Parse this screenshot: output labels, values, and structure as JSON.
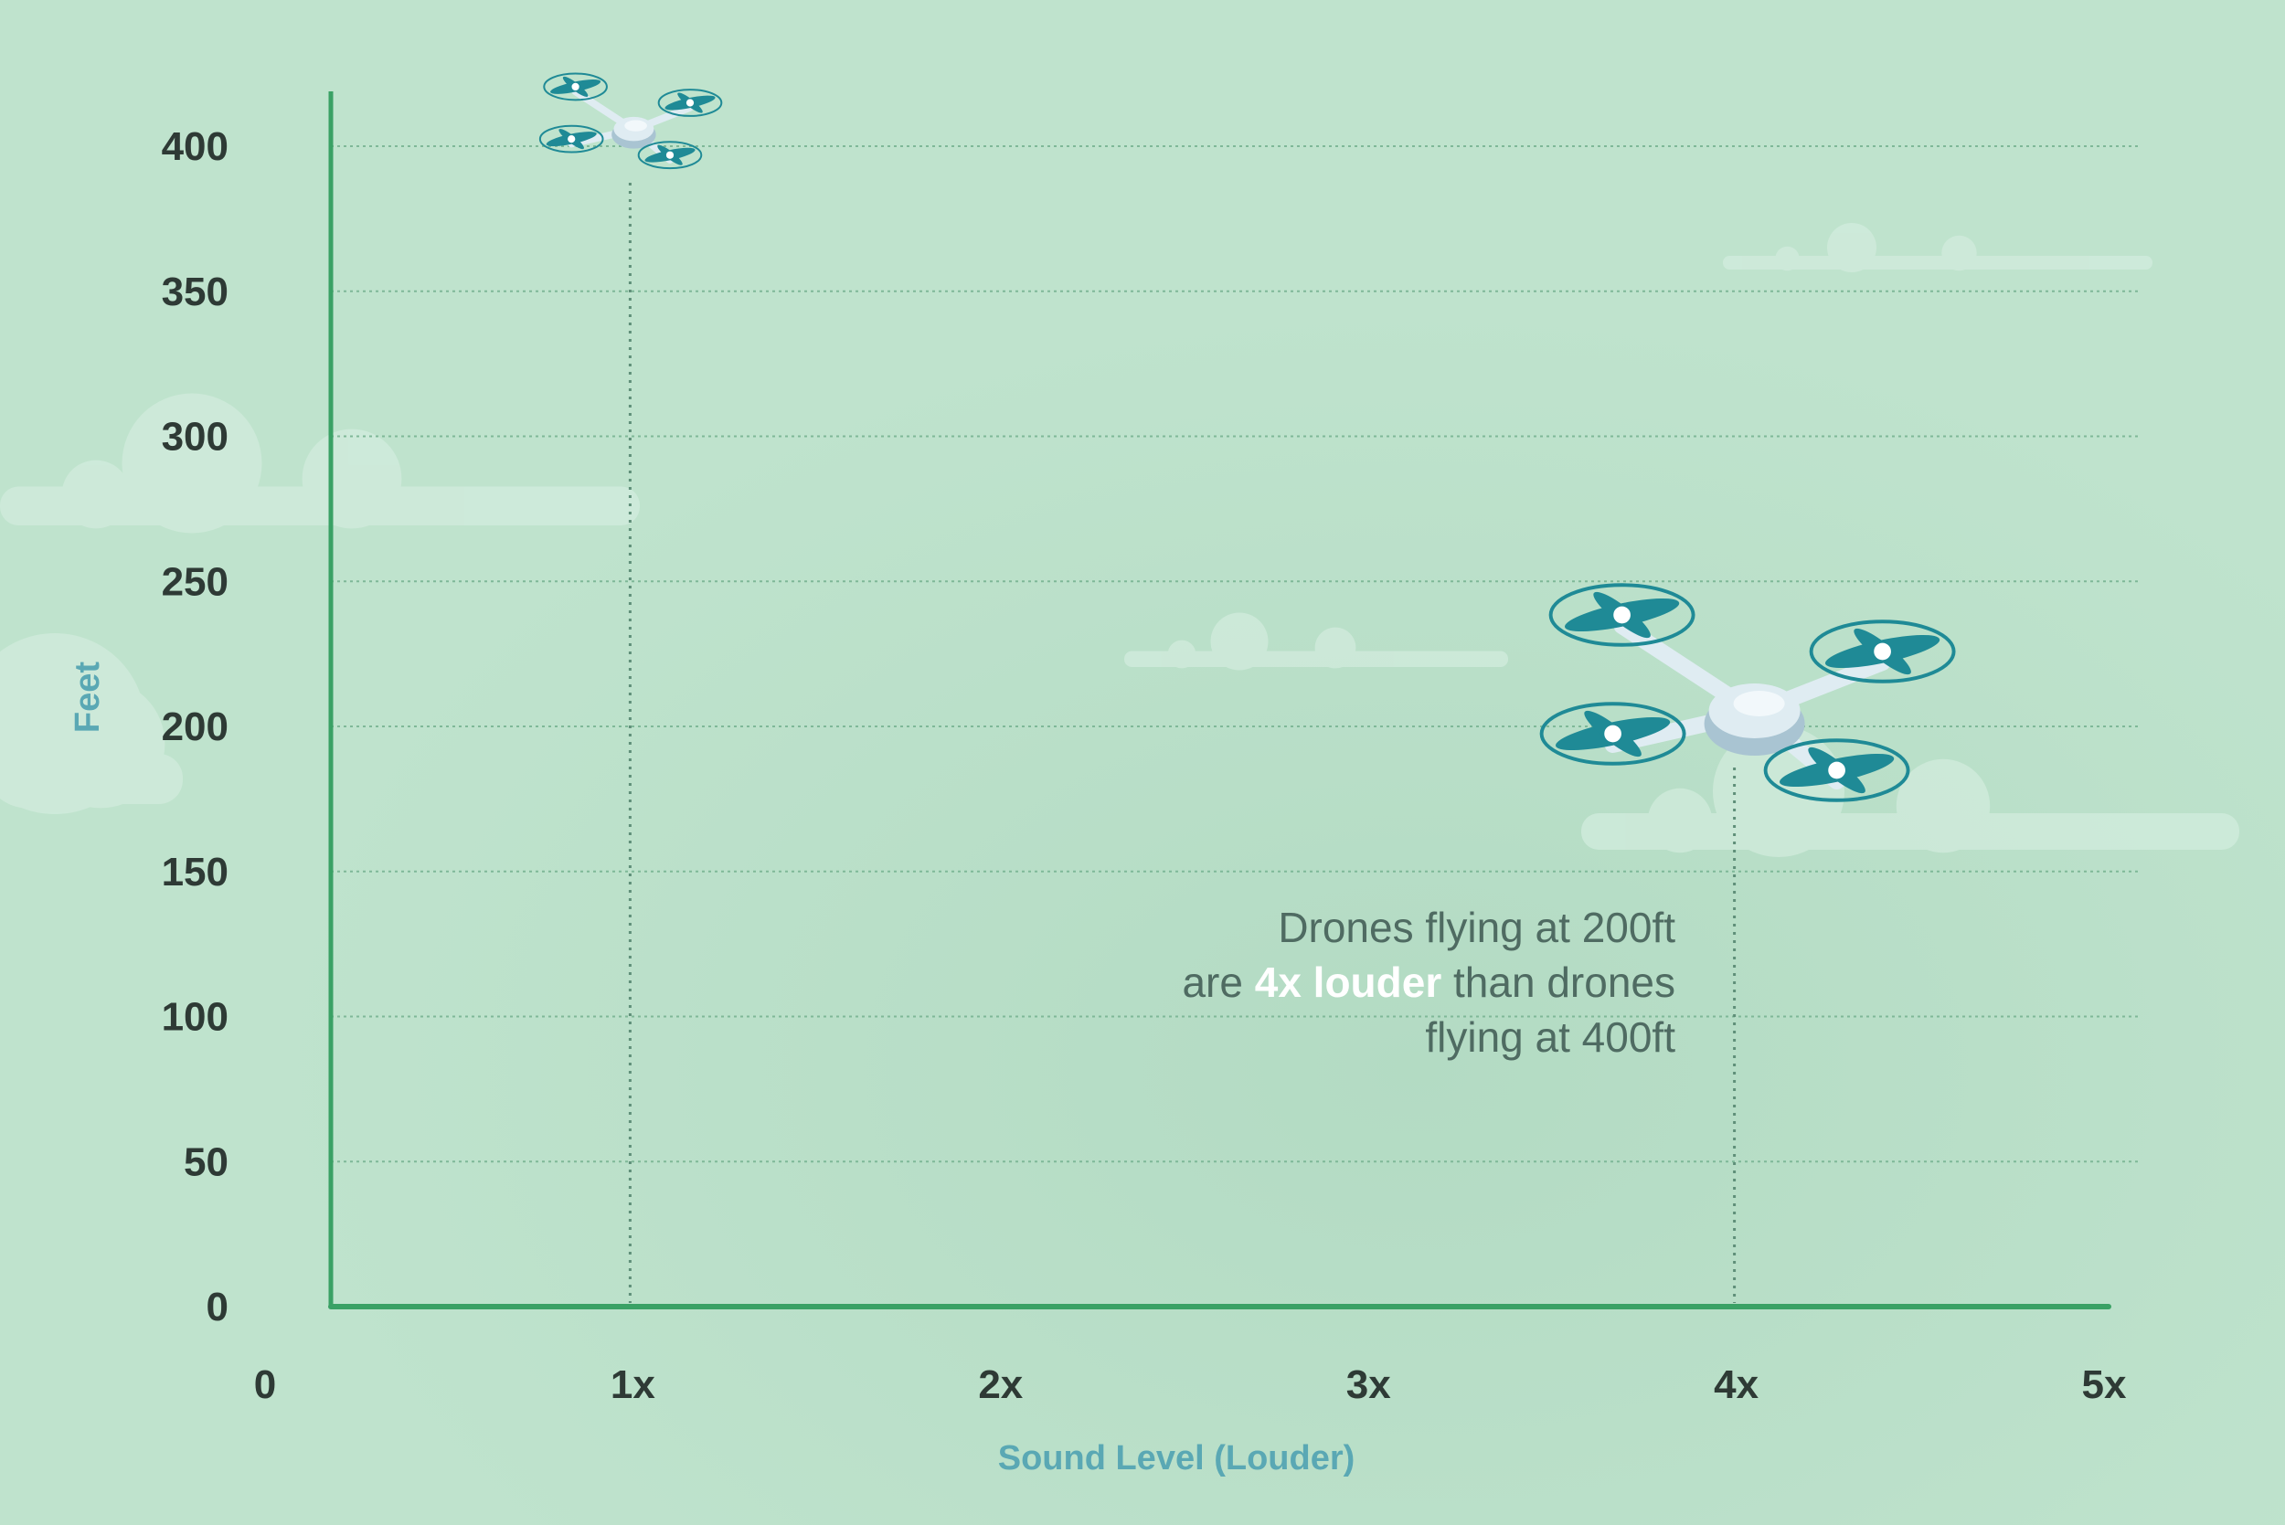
{
  "colors": {
    "background": "#bfe3cd",
    "cloud": "#d2ecdd",
    "axis": "#3aa165",
    "grid": "#7fb898",
    "guide": "#5f8f79",
    "tick_text": "#2e3a35",
    "axis_title": "#5aa8b4",
    "annotation_text": "#4f6b62",
    "annotation_emphasis": "#ffffff",
    "drone_body": "#dfecf2",
    "drone_shade": "#a9c4d2",
    "rotor": "#1f8a96"
  },
  "chart_data": {
    "type": "scatter",
    "title": "",
    "xlabel": "Sound Level (Louder)",
    "ylabel": "Feet",
    "x_ticks": [
      "0",
      "1x",
      "2x",
      "3x",
      "4x",
      "5x"
    ],
    "x_tick_values": [
      0,
      1,
      2,
      3,
      4,
      5
    ],
    "y_ticks": [
      "0",
      "50",
      "100",
      "150",
      "200",
      "250",
      "300",
      "350",
      "400"
    ],
    "y_tick_values": [
      0,
      50,
      100,
      150,
      200,
      250,
      300,
      350,
      400
    ],
    "xlim": [
      0,
      5
    ],
    "ylim": [
      0,
      400
    ],
    "grid": "horizontal, dotted",
    "series": [
      {
        "name": "Drones",
        "points": [
          {
            "x": 1,
            "y": 400,
            "marker": "drone-small-icon"
          },
          {
            "x": 4,
            "y": 200,
            "marker": "drone-large-icon"
          }
        ]
      }
    ],
    "annotation": {
      "line1": "Drones flying at 200ft",
      "line2_prefix": "are ",
      "line2_emphasis": "4x louder",
      "line2_suffix": " than drones",
      "line3": "flying at 400ft"
    }
  }
}
